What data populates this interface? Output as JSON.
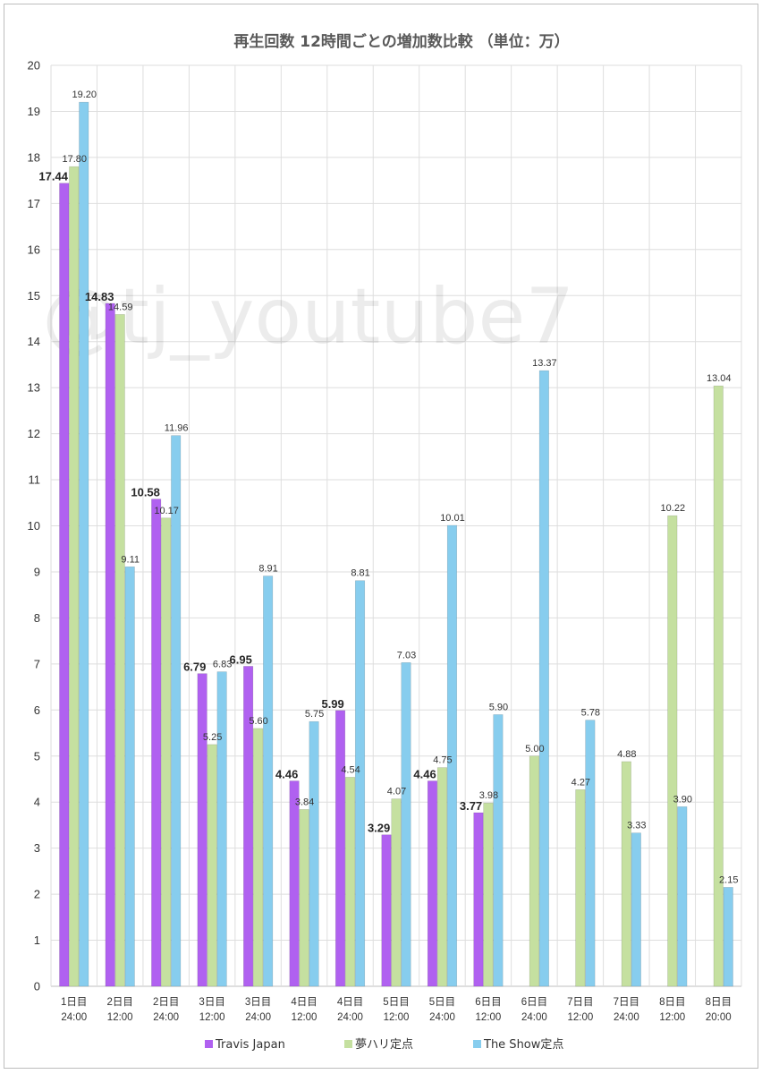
{
  "watermark": "@tj_youtube7",
  "chart_data": {
    "type": "bar",
    "title": "再生回数 12時間ごとの増加数比較 （単位：万）",
    "ylim": [
      0,
      20
    ],
    "ytick_step": 1,
    "grid": true,
    "legend_position": "bottom",
    "categories": [
      [
        "1日目",
        "24:00"
      ],
      [
        "2日目",
        "12:00"
      ],
      [
        "2日目",
        "24:00"
      ],
      [
        "3日目",
        "12:00"
      ],
      [
        "3日目",
        "24:00"
      ],
      [
        "4日目",
        "12:00"
      ],
      [
        "4日目",
        "24:00"
      ],
      [
        "5日目",
        "12:00"
      ],
      [
        "5日目",
        "24:00"
      ],
      [
        "6日目",
        "12:00"
      ],
      [
        "6日目",
        "24:00"
      ],
      [
        "7日目",
        "12:00"
      ],
      [
        "7日目",
        "24:00"
      ],
      [
        "8日目",
        "12:00"
      ],
      [
        "8日目",
        "20:00"
      ]
    ],
    "series": [
      {
        "name": "Travis Japan",
        "color": "#b061f0",
        "bold_labels": true,
        "values": [
          17.44,
          14.83,
          10.58,
          6.79,
          6.95,
          4.46,
          5.99,
          3.29,
          4.46,
          3.77,
          null,
          null,
          null,
          null,
          null
        ],
        "labels": [
          "17.44",
          "14.83",
          "10.58",
          "6.79",
          "6.95",
          "4.46",
          "5.99",
          "3.29",
          "4.46",
          "3.77",
          null,
          null,
          null,
          null,
          null
        ]
      },
      {
        "name": "夢ハリ定点",
        "color": "#c5e0a0",
        "bold_labels": false,
        "values": [
          17.8,
          14.59,
          10.17,
          5.25,
          5.6,
          3.84,
          4.54,
          4.07,
          4.75,
          3.98,
          5.0,
          4.27,
          4.88,
          10.22,
          13.04
        ],
        "labels": [
          "17.80",
          "14.59",
          "10.17",
          "5.25",
          "5.60",
          "3.84",
          "4.54",
          "4.07",
          "4.75",
          "3.98",
          "5.00",
          "4.27",
          "4.88",
          "10.22",
          "13.04"
        ]
      },
      {
        "name": "The Show定点",
        "color": "#87cdee",
        "bold_labels": false,
        "values": [
          19.2,
          9.11,
          11.96,
          6.83,
          8.91,
          5.75,
          8.81,
          7.03,
          10.01,
          5.9,
          13.37,
          5.78,
          3.33,
          3.9,
          2.15
        ],
        "labels": [
          "19.20",
          "9.11",
          "11.96",
          "6.83",
          "8.91",
          "5.75",
          "8.81",
          "7.03",
          "10.01",
          "5.90",
          "13.37",
          "5.78",
          "3.33",
          "3.90",
          "2.15"
        ]
      }
    ]
  }
}
